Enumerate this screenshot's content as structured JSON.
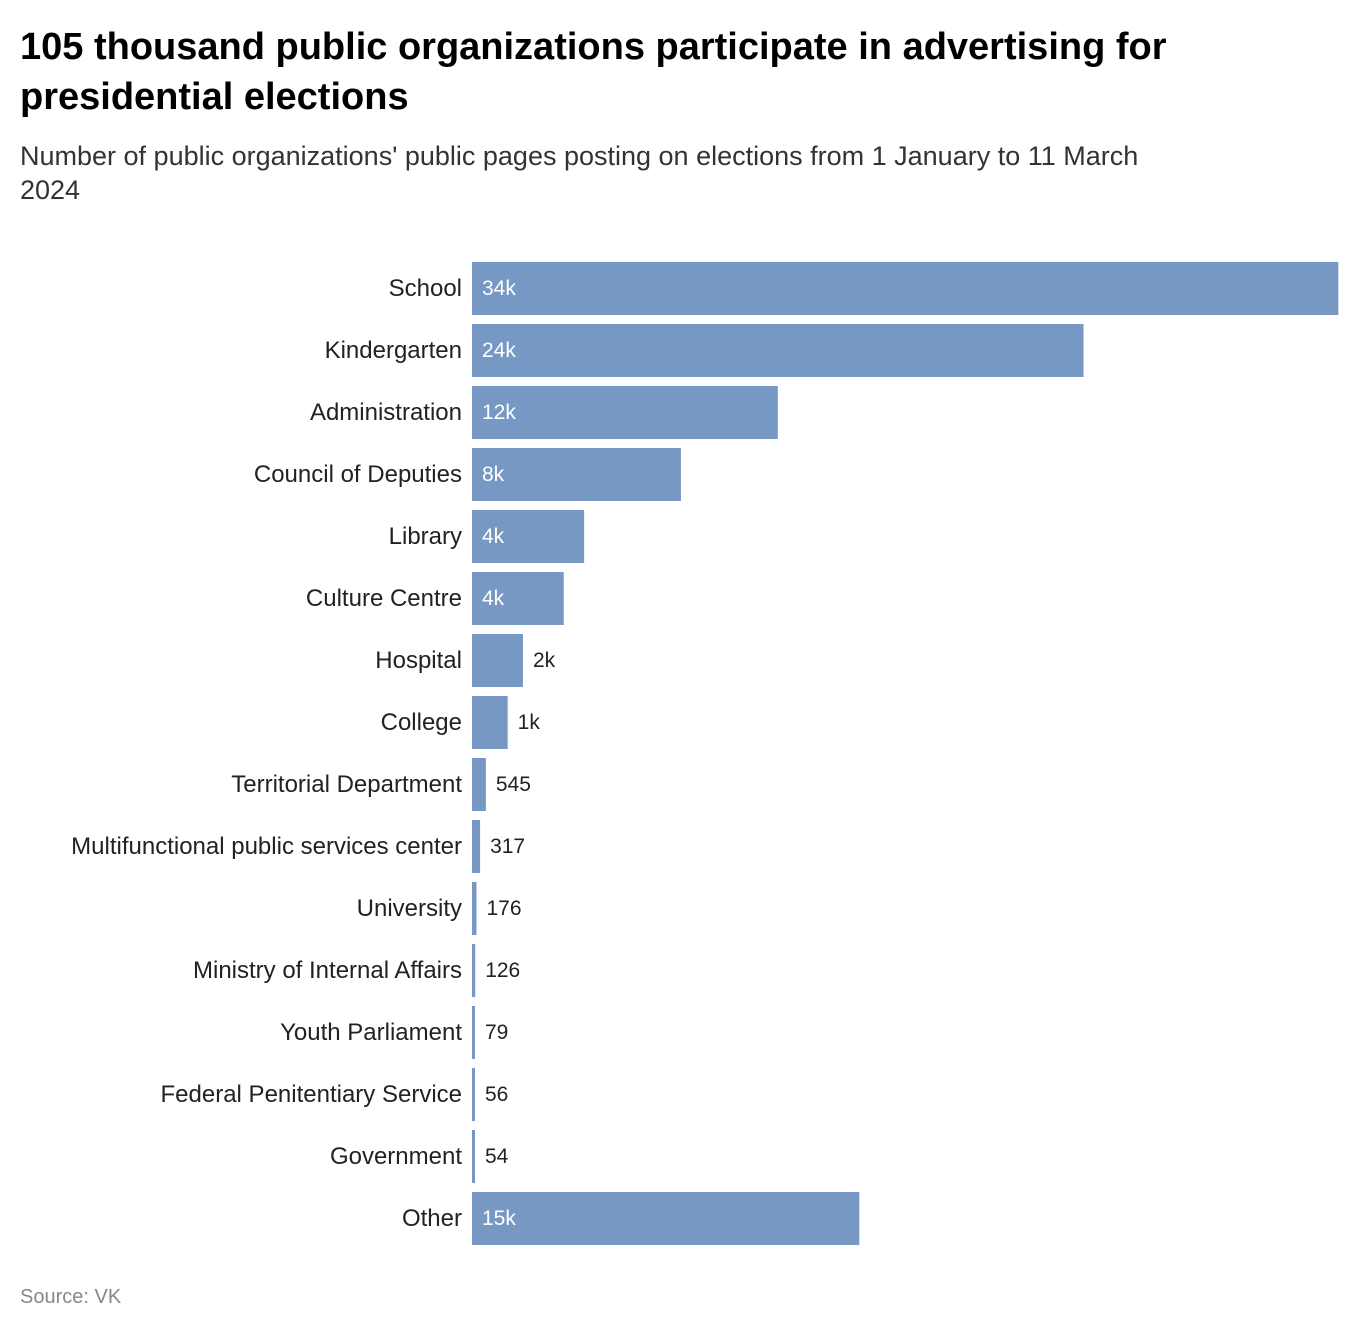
{
  "title": "105 thousand public organizations participate in advertising for presidential elections",
  "subtitle": "Number of public organizations' public pages posting on elections from 1 January to 11 March 2024",
  "source": "Source: VK",
  "colors": {
    "bar": "#7898c4",
    "label_inside": "#ffffff",
    "label_outside": "#222222"
  },
  "chart_data": {
    "type": "bar",
    "orientation": "horizontal",
    "categories": [
      "School",
      "Kindergarten",
      "Administration",
      "Council of Deputies",
      "Library",
      "Culture Centre",
      "Hospital",
      "College",
      "Territorial Department",
      "Multifunctional public services center",
      "University",
      "Ministry of Internal Affairs",
      "Youth Parliament",
      "Federal Penitentiary Service",
      "Government",
      "Other"
    ],
    "values": [
      34000,
      24000,
      12000,
      8200,
      4400,
      3600,
      2000,
      1400,
      545,
      317,
      176,
      126,
      79,
      56,
      54,
      15200
    ],
    "value_labels": [
      "34k",
      "24k",
      "12k",
      "8k",
      "4k",
      "4k",
      "2k",
      "1k",
      "545",
      "317",
      "176",
      "126",
      "79",
      "56",
      "54",
      "15k"
    ],
    "xlim": [
      0,
      34300
    ],
    "grid": false,
    "legend": false
  }
}
